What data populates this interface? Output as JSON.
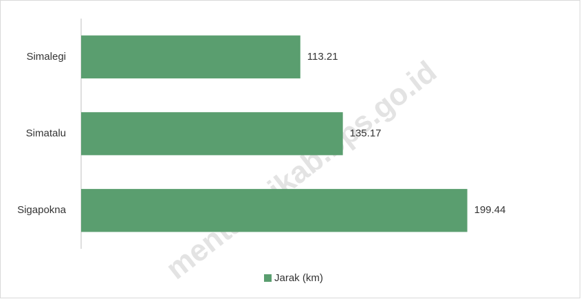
{
  "chart_data": {
    "type": "bar",
    "orientation": "horizontal",
    "categories": [
      "Simalegi",
      "Simatalu",
      "Sigapokna"
    ],
    "series": [
      {
        "name": "Jarak (km)",
        "color": "#5a9e6f",
        "values": [
          113.21,
          135.17,
          199.44
        ]
      }
    ],
    "xlim": [
      0,
      250
    ],
    "legend": "bottom",
    "watermark": "mentawaikab.bps.go.id"
  }
}
